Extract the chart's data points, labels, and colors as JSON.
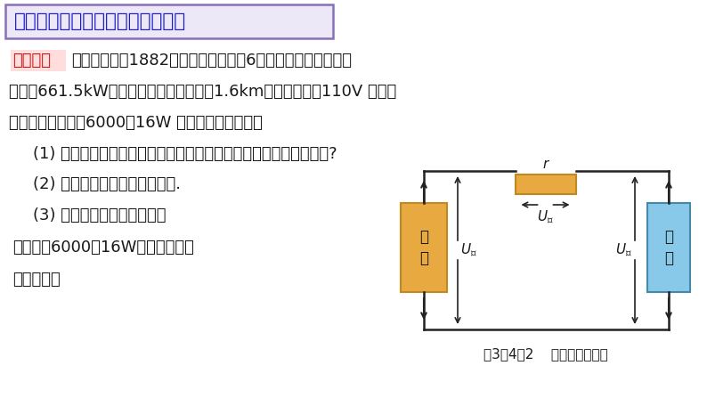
{
  "bg_color": "#ffffff",
  "title_text": "远距离输电中的电功率和电压损耗",
  "title_bg": "#ece8f8",
  "title_border": "#8870b8",
  "title_color": "#1a1acc",
  "example_label": "【例题】",
  "example_label_color": "#cc1111",
  "example_label_bg": "#ffdddd",
  "body_color": "#1a1a1a",
  "text_line1": "查史料可知，1882年珍珠街电站采用6台直流发电机，输出总",
  "text_line2": "功率为661.5kW，电能输送的最远距离为1.6km，给用户提供110V 的直流",
  "text_line3": "电压，最多可满足6000盏16W 的爱迪生灯泡使用。",
  "q1": "    (1) 电流在输电线路上损耗的功率占发电机输出功率的百分比是多少?",
  "q2": "    (2) 估算直流发电机的输出电压.",
  "q3": "    (3) 若将输电距离增加一倍，",
  "q4": "还能否为6000盏16W的爱迪生灯泡",
  "q5": "正常使用？",
  "circuit_caption": "图3－4－2    直流输电电路图",
  "source_box_color": "#e8aa40",
  "source_box_edge": "#c08820",
  "user_box_color": "#88c8e8",
  "user_box_edge": "#4488aa",
  "resistor_color": "#e8aa40",
  "resistor_edge": "#c08820",
  "line_color": "#222222",
  "arrow_color": "#222222"
}
